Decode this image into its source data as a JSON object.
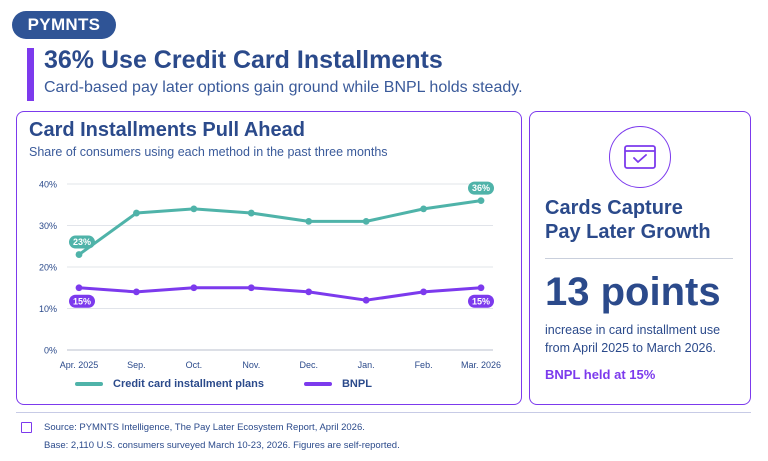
{
  "brand": "PYMNTS",
  "header": {
    "title": "36% Use Credit Card Installments",
    "subtitle": "Card-based pay later options gain ground while BNPL holds steady."
  },
  "chart_panel": {
    "title": "Card Installments Pull Ahead",
    "subtitle": "Share of consumers using each method in the past three months"
  },
  "chart_data": {
    "type": "line",
    "title": "Card Installments Pull Ahead",
    "subtitle": "Share of consumers using each method in the past three months",
    "categories": [
      "Apr. 2025",
      "Sep.",
      "Oct.",
      "Nov.",
      "Dec.",
      "Jan.",
      "Feb.",
      "Mar. 2026"
    ],
    "y_ticks": [
      "0%",
      "10%",
      "20%",
      "30%",
      "40%"
    ],
    "ylim": [
      0,
      40
    ],
    "grid": true,
    "legend_position": "bottom",
    "series": [
      {
        "name": "Credit card installment plans",
        "color": "#4fb3a9",
        "values": [
          23,
          33,
          34,
          33,
          31,
          31,
          34,
          36
        ],
        "callouts": [
          {
            "index": 0,
            "label": "23%"
          },
          {
            "index": 7,
            "label": "36%"
          }
        ]
      },
      {
        "name": "BNPL",
        "color": "#7c3aed",
        "values": [
          15,
          14,
          15,
          15,
          14,
          12,
          14,
          15
        ],
        "callouts": [
          {
            "index": 0,
            "label": "15%"
          },
          {
            "index": 7,
            "label": "15%"
          }
        ]
      }
    ]
  },
  "side_panel": {
    "icon": "credit-card-check-icon",
    "headline_line1": "Cards Capture",
    "headline_line2": "Pay Later Growth",
    "big_number": "13 points",
    "desc_line1": "increase in card installment use",
    "desc_line2": "from April 2025 to March 2026.",
    "note": "BNPL held at 15%"
  },
  "footer": {
    "source": "Source: PYMNTS Intelligence, The Pay Later Ecosystem Report, April 2026.",
    "base": "Base: 2,110 U.S. consumers surveyed March 10-23, 2026. Figures are self-reported."
  },
  "colors": {
    "accent": "#7c3aed",
    "teal": "#4fb3a9",
    "navy": "#2b4a8b",
    "brand": "#2f5496"
  }
}
